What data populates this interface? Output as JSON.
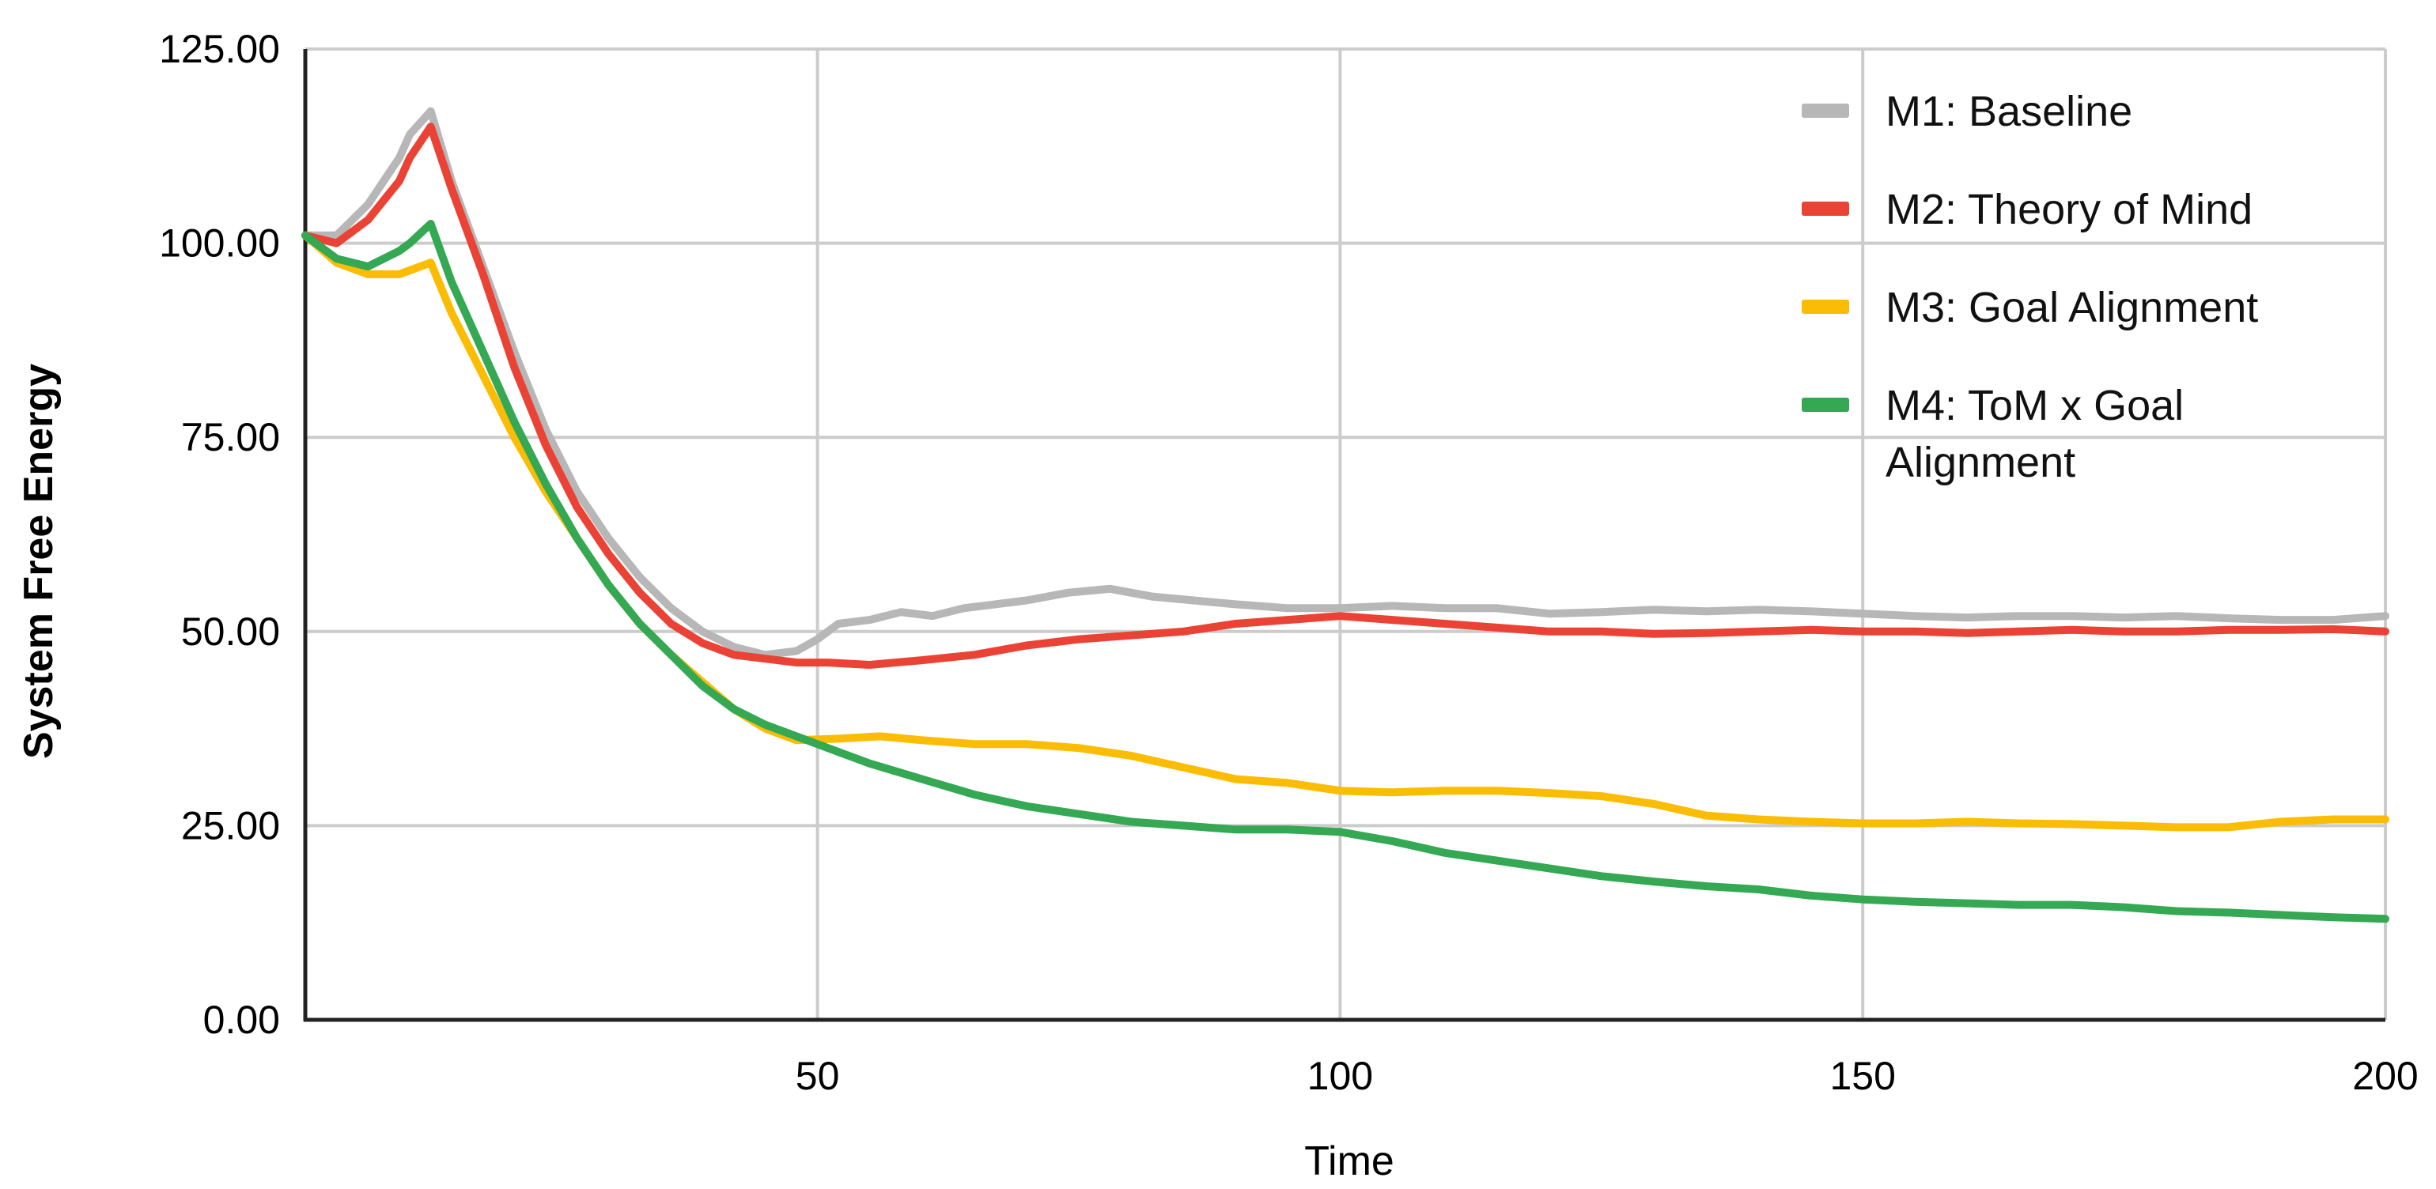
{
  "chart_data": {
    "type": "line",
    "xlabel": "Time",
    "ylabel": "System Free Energy",
    "xlim": [
      1,
      200
    ],
    "ylim": [
      0,
      125
    ],
    "x_ticks": [
      {
        "value": 50,
        "label": "50"
      },
      {
        "value": 100,
        "label": "100"
      },
      {
        "value": 150,
        "label": "150"
      },
      {
        "value": 200,
        "label": "200"
      }
    ],
    "y_ticks": [
      {
        "value": 0,
        "label": "0.00"
      },
      {
        "value": 25,
        "label": "25.00"
      },
      {
        "value": 50,
        "label": "50.00"
      },
      {
        "value": 75,
        "label": "75.00"
      },
      {
        "value": 100,
        "label": "100.00"
      },
      {
        "value": 125,
        "label": "125.00"
      }
    ],
    "grid": true,
    "legend_position": "top-right",
    "series": [
      {
        "name": "M1: Baseline",
        "color": "#b7b7b7",
        "legend_lines": [
          "M1: Baseline"
        ],
        "points": [
          [
            1,
            101
          ],
          [
            4,
            101
          ],
          [
            7,
            105
          ],
          [
            10,
            111
          ],
          [
            11,
            114
          ],
          [
            13,
            117
          ],
          [
            15,
            108
          ],
          [
            18,
            97
          ],
          [
            21,
            86
          ],
          [
            24,
            76
          ],
          [
            27,
            68
          ],
          [
            30,
            62
          ],
          [
            33,
            57
          ],
          [
            36,
            53
          ],
          [
            39,
            50
          ],
          [
            42,
            48
          ],
          [
            45,
            47
          ],
          [
            48,
            47.5
          ],
          [
            50,
            49
          ],
          [
            52,
            51
          ],
          [
            55,
            51.5
          ],
          [
            58,
            52.5
          ],
          [
            61,
            52
          ],
          [
            64,
            53
          ],
          [
            67,
            53.5
          ],
          [
            70,
            54
          ],
          [
            74,
            55
          ],
          [
            78,
            55.5
          ],
          [
            82,
            54.5
          ],
          [
            86,
            54
          ],
          [
            90,
            53.5
          ],
          [
            95,
            53
          ],
          [
            100,
            53
          ],
          [
            105,
            53.3
          ],
          [
            110,
            53
          ],
          [
            115,
            53
          ],
          [
            120,
            52.3
          ],
          [
            125,
            52.5
          ],
          [
            130,
            52.8
          ],
          [
            135,
            52.6
          ],
          [
            140,
            52.8
          ],
          [
            145,
            52.6
          ],
          [
            150,
            52.3
          ],
          [
            155,
            52
          ],
          [
            160,
            51.8
          ],
          [
            165,
            52
          ],
          [
            170,
            52
          ],
          [
            175,
            51.8
          ],
          [
            180,
            52
          ],
          [
            185,
            51.7
          ],
          [
            190,
            51.5
          ],
          [
            195,
            51.5
          ],
          [
            200,
            52
          ]
        ]
      },
      {
        "name": "M2: Theory of Mind",
        "color": "#ea4335",
        "legend_lines": [
          "M2: Theory of Mind"
        ],
        "points": [
          [
            1,
            101
          ],
          [
            4,
            100
          ],
          [
            7,
            103
          ],
          [
            10,
            108
          ],
          [
            11,
            111
          ],
          [
            13,
            115
          ],
          [
            15,
            107
          ],
          [
            18,
            96
          ],
          [
            21,
            84
          ],
          [
            24,
            74
          ],
          [
            27,
            66
          ],
          [
            30,
            60
          ],
          [
            33,
            55
          ],
          [
            36,
            51
          ],
          [
            39,
            48.5
          ],
          [
            42,
            47
          ],
          [
            45,
            46.5
          ],
          [
            48,
            46
          ],
          [
            51,
            46
          ],
          [
            55,
            45.7
          ],
          [
            60,
            46.3
          ],
          [
            65,
            47
          ],
          [
            70,
            48.2
          ],
          [
            75,
            49
          ],
          [
            80,
            49.5
          ],
          [
            85,
            50
          ],
          [
            90,
            51
          ],
          [
            95,
            51.5
          ],
          [
            100,
            52
          ],
          [
            105,
            51.5
          ],
          [
            110,
            51
          ],
          [
            115,
            50.5
          ],
          [
            120,
            50
          ],
          [
            125,
            50
          ],
          [
            130,
            49.7
          ],
          [
            135,
            49.8
          ],
          [
            140,
            50
          ],
          [
            145,
            50.2
          ],
          [
            150,
            50
          ],
          [
            155,
            50
          ],
          [
            160,
            49.8
          ],
          [
            165,
            50
          ],
          [
            170,
            50.2
          ],
          [
            175,
            50
          ],
          [
            180,
            50
          ],
          [
            185,
            50.2
          ],
          [
            190,
            50.2
          ],
          [
            195,
            50.3
          ],
          [
            200,
            50
          ]
        ]
      },
      {
        "name": "M3: Goal Alignment",
        "color": "#fbbc04",
        "legend_lines": [
          "M3: Goal Alignment"
        ],
        "points": [
          [
            1,
            101
          ],
          [
            4,
            97.5
          ],
          [
            7,
            96
          ],
          [
            10,
            96
          ],
          [
            11,
            96.5
          ],
          [
            13,
            97.5
          ],
          [
            15,
            91
          ],
          [
            18,
            83
          ],
          [
            21,
            75
          ],
          [
            24,
            68
          ],
          [
            27,
            62
          ],
          [
            30,
            56
          ],
          [
            33,
            51
          ],
          [
            36,
            47
          ],
          [
            39,
            43.5
          ],
          [
            42,
            40
          ],
          [
            45,
            37.5
          ],
          [
            48,
            36
          ],
          [
            52,
            36.2
          ],
          [
            56,
            36.5
          ],
          [
            60,
            36
          ],
          [
            65,
            35.5
          ],
          [
            70,
            35.5
          ],
          [
            75,
            35
          ],
          [
            80,
            34
          ],
          [
            85,
            32.5
          ],
          [
            90,
            31
          ],
          [
            95,
            30.5
          ],
          [
            100,
            29.5
          ],
          [
            105,
            29.3
          ],
          [
            110,
            29.5
          ],
          [
            115,
            29.5
          ],
          [
            120,
            29.2
          ],
          [
            125,
            28.8
          ],
          [
            130,
            27.8
          ],
          [
            135,
            26.3
          ],
          [
            140,
            25.8
          ],
          [
            145,
            25.5
          ],
          [
            150,
            25.3
          ],
          [
            155,
            25.3
          ],
          [
            160,
            25.5
          ],
          [
            165,
            25.3
          ],
          [
            170,
            25.2
          ],
          [
            175,
            25
          ],
          [
            180,
            24.8
          ],
          [
            185,
            24.8
          ],
          [
            190,
            25.5
          ],
          [
            195,
            25.8
          ],
          [
            200,
            25.8
          ]
        ]
      },
      {
        "name": "M4: ToM x Goal Alignment",
        "color": "#34a853",
        "legend_lines": [
          "M4: ToM x Goal",
          "Alignment"
        ],
        "points": [
          [
            1,
            101
          ],
          [
            4,
            98
          ],
          [
            7,
            97
          ],
          [
            10,
            99
          ],
          [
            11,
            100
          ],
          [
            13,
            102.5
          ],
          [
            15,
            95
          ],
          [
            18,
            86
          ],
          [
            21,
            77
          ],
          [
            24,
            69
          ],
          [
            27,
            62
          ],
          [
            30,
            56
          ],
          [
            33,
            51
          ],
          [
            36,
            47
          ],
          [
            39,
            43
          ],
          [
            42,
            40
          ],
          [
            45,
            38
          ],
          [
            48,
            36.5
          ],
          [
            51,
            35
          ],
          [
            55,
            33
          ],
          [
            60,
            31
          ],
          [
            65,
            29
          ],
          [
            70,
            27.5
          ],
          [
            75,
            26.5
          ],
          [
            80,
            25.5
          ],
          [
            85,
            25
          ],
          [
            90,
            24.5
          ],
          [
            95,
            24.5
          ],
          [
            100,
            24.2
          ],
          [
            105,
            23
          ],
          [
            110,
            21.5
          ],
          [
            115,
            20.5
          ],
          [
            120,
            19.5
          ],
          [
            125,
            18.5
          ],
          [
            130,
            17.8
          ],
          [
            135,
            17.2
          ],
          [
            140,
            16.8
          ],
          [
            145,
            16
          ],
          [
            150,
            15.5
          ],
          [
            155,
            15.2
          ],
          [
            160,
            15
          ],
          [
            165,
            14.8
          ],
          [
            170,
            14.8
          ],
          [
            175,
            14.5
          ],
          [
            180,
            14
          ],
          [
            185,
            13.8
          ],
          [
            190,
            13.5
          ],
          [
            195,
            13.2
          ],
          [
            200,
            13
          ]
        ]
      }
    ]
  }
}
